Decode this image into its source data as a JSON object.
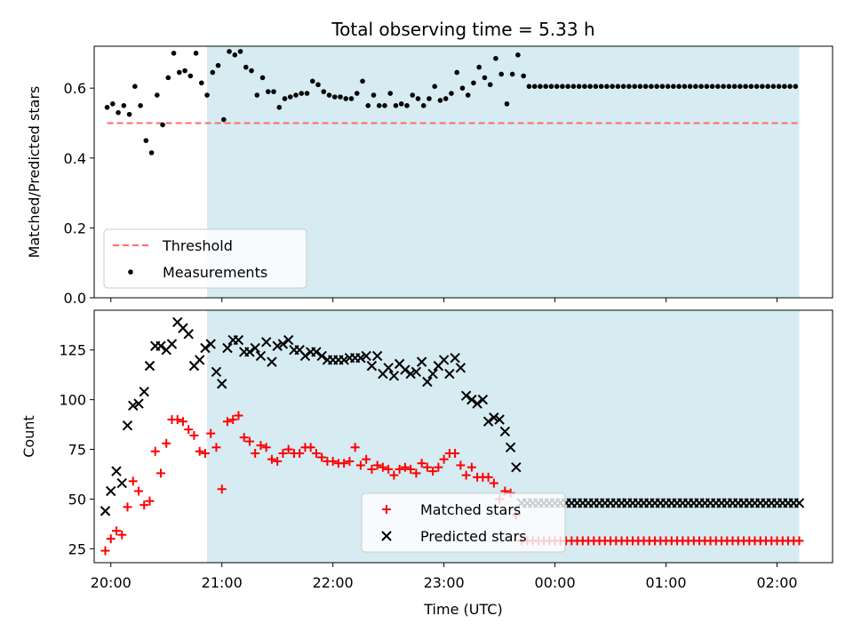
{
  "chart_data": [
    {
      "type": "scatter",
      "title": "Total observing time = 5.33 h",
      "xlabel": "",
      "ylabel": "Matched/Predicted stars",
      "xlim": [
        "19:51",
        "02:30"
      ],
      "ylim": [
        0,
        0.72
      ],
      "yticks": [
        0,
        0.2,
        0.4,
        0.6
      ],
      "ytick_labels": [
        "0.0",
        "0.2",
        "0.4",
        "0.6"
      ],
      "xticks": [
        "20:00",
        "21:00",
        "22:00",
        "23:00",
        "00:00",
        "01:00",
        "02:00"
      ],
      "shaded_region": {
        "start": "20:52",
        "end": "02:12",
        "color": "#add8e6"
      },
      "threshold": {
        "name": "Threshold",
        "value": 0.5,
        "start": "19:58",
        "end": "02:12",
        "color": "#ff6b6b"
      },
      "legend": {
        "position": "lower-left",
        "entries": [
          "Threshold",
          "Measurements"
        ]
      },
      "series": [
        {
          "name": "Measurements",
          "marker": "dot",
          "color": "#000000",
          "x": [
            "19:58",
            "20:01",
            "20:04",
            "20:07",
            "20:10",
            "20:13",
            "20:16",
            "20:19",
            "20:22",
            "20:25",
            "20:28",
            "20:31",
            "20:34",
            "20:37",
            "20:40",
            "20:43",
            "20:46",
            "20:49",
            "20:52",
            "20:55",
            "20:58",
            "21:01",
            "21:04",
            "21:07",
            "21:10",
            "21:13",
            "21:16",
            "21:19",
            "21:22",
            "21:25",
            "21:28",
            "21:31",
            "21:34",
            "21:37",
            "21:40",
            "21:43",
            "21:46",
            "21:49",
            "21:52",
            "21:55",
            "21:58",
            "22:01",
            "22:04",
            "22:07",
            "22:10",
            "22:13",
            "22:16",
            "22:19",
            "22:22",
            "22:25",
            "22:28",
            "22:31",
            "22:34",
            "22:37",
            "22:40",
            "22:43",
            "22:46",
            "22:49",
            "22:52",
            "22:55",
            "22:58",
            "23:01",
            "23:04",
            "23:07",
            "23:10",
            "23:13",
            "23:16",
            "23:19",
            "23:22",
            "23:25",
            "23:28",
            "23:31",
            "23:34",
            "23:37",
            "23:40",
            "23:43",
            "23:46",
            "23:49",
            "23:52",
            "23:55",
            "23:58",
            "00:01",
            "00:04",
            "00:07",
            "00:10",
            "00:13",
            "00:16",
            "00:19",
            "00:22",
            "00:25",
            "00:28",
            "00:31",
            "00:34",
            "00:37",
            "00:40",
            "00:43",
            "00:46",
            "00:49",
            "00:52",
            "00:55",
            "00:58",
            "01:01",
            "01:04",
            "01:07",
            "01:10",
            "01:13",
            "01:16",
            "01:19",
            "01:22",
            "01:25",
            "01:28",
            "01:31",
            "01:34",
            "01:37",
            "01:40",
            "01:43",
            "01:46",
            "01:49",
            "01:52",
            "01:55",
            "01:58",
            "02:01",
            "02:04",
            "02:07",
            "02:10",
            "02:13"
          ],
          "y": [
            0.545,
            0.555,
            0.53,
            0.55,
            0.525,
            0.605,
            0.55,
            0.45,
            0.415,
            0.58,
            0.495,
            0.63,
            0.7,
            0.645,
            0.65,
            0.635,
            0.7,
            0.615,
            0.58,
            0.645,
            0.665,
            0.51,
            0.705,
            0.695,
            0.705,
            0.66,
            0.65,
            0.58,
            0.63,
            0.59,
            0.59,
            0.545,
            0.57,
            0.575,
            0.58,
            0.585,
            0.585,
            0.62,
            0.61,
            0.59,
            0.58,
            0.575,
            0.575,
            0.57,
            0.57,
            0.585,
            0.62,
            0.55,
            0.58,
            0.55,
            0.55,
            0.585,
            0.55,
            0.555,
            0.55,
            0.58,
            0.57,
            0.55,
            0.57,
            0.605,
            0.565,
            0.57,
            0.585,
            0.645,
            0.6,
            0.58,
            0.615,
            0.66,
            0.63,
            0.61,
            0.685,
            0.64,
            0.555,
            0.64,
            0.695,
            0.635,
            0.605,
            0.605,
            0.605,
            0.605,
            0.605,
            0.605,
            0.605,
            0.605,
            0.605,
            0.605,
            0.605,
            0.605,
            0.605,
            0.605,
            0.605,
            0.605,
            0.605,
            0.605,
            0.605,
            0.605,
            0.605,
            0.605,
            0.605,
            0.605,
            0.605,
            0.605,
            0.605,
            0.605,
            0.605,
            0.605,
            0.605,
            0.605,
            0.605,
            0.605,
            0.605,
            0.605,
            0.605,
            0.605,
            0.605,
            0.605,
            0.605,
            0.605,
            0.605,
            0.605,
            0.605,
            0.605,
            0.605,
            0.605,
            0.605,
            0.605
          ]
        }
      ]
    },
    {
      "type": "scatter",
      "title": "",
      "xlabel": "Time (UTC)",
      "ylabel": "Count",
      "xlim": [
        "19:51",
        "02:30"
      ],
      "ylim": [
        18,
        145
      ],
      "yticks": [
        25,
        50,
        75,
        100,
        125
      ],
      "ytick_labels": [
        "25",
        "50",
        "75",
        "100",
        "125"
      ],
      "xticks": [
        "20:00",
        "21:00",
        "22:00",
        "23:00",
        "00:00",
        "01:00",
        "02:00"
      ],
      "shaded_region": {
        "start": "20:52",
        "end": "02:12",
        "color": "#add8e6"
      },
      "legend": {
        "position": "lower-center",
        "entries": [
          "Matched stars",
          "Predicted stars"
        ]
      },
      "series": [
        {
          "name": "Matched stars",
          "marker": "plus",
          "color": "#ff0000",
          "x": [
            "19:57",
            "20:00",
            "20:03",
            "20:06",
            "20:09",
            "20:12",
            "20:15",
            "20:18",
            "20:21",
            "20:24",
            "20:27",
            "20:30",
            "20:33",
            "20:36",
            "20:39",
            "20:42",
            "20:45",
            "20:48",
            "20:51",
            "20:54",
            "20:57",
            "21:00",
            "21:03",
            "21:06",
            "21:09",
            "21:12",
            "21:15",
            "21:18",
            "21:21",
            "21:24",
            "21:27",
            "21:30",
            "21:33",
            "21:36",
            "21:39",
            "21:42",
            "21:45",
            "21:48",
            "21:51",
            "21:54",
            "21:57",
            "22:00",
            "22:03",
            "22:06",
            "22:09",
            "22:12",
            "22:15",
            "22:18",
            "22:21",
            "22:24",
            "22:27",
            "22:30",
            "22:33",
            "22:36",
            "22:39",
            "22:42",
            "22:45",
            "22:48",
            "22:51",
            "22:54",
            "22:57",
            "23:00",
            "23:03",
            "23:06",
            "23:09",
            "23:12",
            "23:15",
            "23:18",
            "23:21",
            "23:24",
            "23:27",
            "23:30",
            "23:33",
            "23:36",
            "23:39",
            "23:42",
            "23:45",
            "23:48",
            "23:51",
            "23:54",
            "23:57",
            "00:00",
            "00:03",
            "00:06",
            "00:09",
            "00:12",
            "00:15",
            "00:18",
            "00:21",
            "00:24",
            "00:27",
            "00:30",
            "00:33",
            "00:36",
            "00:39",
            "00:42",
            "00:45",
            "00:48",
            "00:51",
            "00:54",
            "00:57",
            "01:00",
            "01:03",
            "01:06",
            "01:09",
            "01:12",
            "01:15",
            "01:18",
            "01:21",
            "01:24",
            "01:27",
            "01:30",
            "01:33",
            "01:36",
            "01:39",
            "01:42",
            "01:45",
            "01:48",
            "01:51",
            "01:54",
            "01:57",
            "02:00",
            "02:03",
            "02:06",
            "02:09",
            "02:12"
          ],
          "y": [
            24,
            30,
            34,
            32,
            46,
            59,
            54,
            47,
            49,
            74,
            63,
            78,
            90,
            90,
            89,
            85,
            82,
            74,
            73,
            83,
            76,
            55,
            89,
            90,
            92,
            81,
            79,
            73,
            77,
            76,
            70,
            69,
            73,
            75,
            73,
            73,
            76,
            76,
            73,
            71,
            69,
            69,
            68,
            68,
            69,
            76,
            67,
            70,
            65,
            67,
            66,
            65,
            62,
            65,
            66,
            65,
            63,
            68,
            66,
            64,
            66,
            70,
            73,
            73,
            67,
            62,
            66,
            61,
            61,
            61,
            58,
            50,
            54,
            53,
            42,
            29,
            29,
            29,
            29,
            29,
            29,
            29,
            29,
            29,
            29,
            29,
            29,
            29,
            29,
            29,
            29,
            29,
            29,
            29,
            29,
            29,
            29,
            29,
            29,
            29,
            29,
            29,
            29,
            29,
            29,
            29,
            29,
            29,
            29,
            29,
            29,
            29,
            29,
            29,
            29,
            29,
            29,
            29,
            29,
            29,
            29,
            29,
            29,
            29,
            29,
            29
          ]
        },
        {
          "name": "Predicted stars",
          "marker": "x",
          "color": "#000000",
          "x": [
            "19:57",
            "20:00",
            "20:03",
            "20:06",
            "20:09",
            "20:12",
            "20:15",
            "20:18",
            "20:21",
            "20:24",
            "20:27",
            "20:30",
            "20:33",
            "20:36",
            "20:39",
            "20:42",
            "20:45",
            "20:48",
            "20:51",
            "20:54",
            "20:57",
            "21:00",
            "21:03",
            "21:06",
            "21:09",
            "21:12",
            "21:15",
            "21:18",
            "21:21",
            "21:24",
            "21:27",
            "21:30",
            "21:33",
            "21:36",
            "21:39",
            "21:42",
            "21:45",
            "21:48",
            "21:51",
            "21:54",
            "21:57",
            "22:00",
            "22:03",
            "22:06",
            "22:09",
            "22:12",
            "22:15",
            "22:18",
            "22:21",
            "22:24",
            "22:27",
            "22:30",
            "22:33",
            "22:36",
            "22:39",
            "22:42",
            "22:45",
            "22:48",
            "22:51",
            "22:54",
            "22:57",
            "23:00",
            "23:03",
            "23:06",
            "23:09",
            "23:12",
            "23:15",
            "23:18",
            "23:21",
            "23:24",
            "23:27",
            "23:30",
            "23:33",
            "23:36",
            "23:39",
            "23:42",
            "23:45",
            "23:48",
            "23:51",
            "23:54",
            "23:57",
            "00:00",
            "00:03",
            "00:06",
            "00:09",
            "00:12",
            "00:15",
            "00:18",
            "00:21",
            "00:24",
            "00:27",
            "00:30",
            "00:33",
            "00:36",
            "00:39",
            "00:42",
            "00:45",
            "00:48",
            "00:51",
            "00:54",
            "00:57",
            "01:00",
            "01:03",
            "01:06",
            "01:09",
            "01:12",
            "01:15",
            "01:18",
            "01:21",
            "01:24",
            "01:27",
            "01:30",
            "01:33",
            "01:36",
            "01:39",
            "01:42",
            "01:45",
            "01:48",
            "01:51",
            "01:54",
            "01:57",
            "02:00",
            "02:03",
            "02:06",
            "02:09",
            "02:12"
          ],
          "y": [
            44,
            54,
            64,
            58,
            87,
            97,
            98,
            104,
            117,
            127,
            127,
            125,
            128,
            139,
            136,
            133,
            117,
            120,
            126,
            128,
            114,
            108,
            126,
            130,
            130,
            124,
            124,
            126,
            122,
            129,
            119,
            127,
            128,
            130,
            125,
            125,
            122,
            124,
            124,
            122,
            120,
            120,
            120,
            120,
            121,
            121,
            121,
            122,
            117,
            122,
            113,
            116,
            112,
            118,
            115,
            113,
            114,
            119,
            109,
            113,
            117,
            120,
            113,
            121,
            116,
            102,
            100,
            98,
            100,
            89,
            91,
            90,
            84,
            76,
            66,
            48,
            48,
            48,
            48,
            48,
            48,
            48,
            48,
            48,
            48,
            48,
            48,
            48,
            48,
            48,
            48,
            48,
            48,
            48,
            48,
            48,
            48,
            48,
            48,
            48,
            48,
            48,
            48,
            48,
            48,
            48,
            48,
            48,
            48,
            48,
            48,
            48,
            48,
            48,
            48,
            48,
            48,
            48,
            48,
            48,
            48,
            48,
            48,
            48,
            48,
            48
          ]
        }
      ]
    }
  ]
}
